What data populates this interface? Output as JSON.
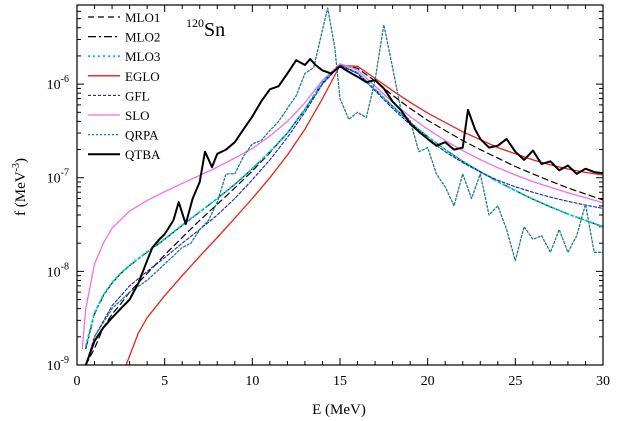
{
  "chart_data": {
    "type": "line",
    "annotation": {
      "sup": "120",
      "main": "Sn"
    },
    "xlabel": "E (MeV)",
    "ylabel_main": "f (MeV",
    "ylabel_sup": "-3",
    "ylabel_end": ")",
    "xlim": [
      0,
      30
    ],
    "ylim": [
      1e-09,
      7e-06
    ],
    "yscale": "log",
    "grid": false,
    "legend_position": "top-left",
    "x_ticks": [
      {
        "value": 0,
        "label": "0"
      },
      {
        "value": 5,
        "label": "5"
      },
      {
        "value": 10,
        "label": "10"
      },
      {
        "value": 15,
        "label": "15"
      },
      {
        "value": 20,
        "label": "20"
      },
      {
        "value": 25,
        "label": "25"
      },
      {
        "value": 30,
        "label": "30"
      }
    ],
    "y_ticks": [
      {
        "value": 1e-09,
        "base": "10",
        "exp": "-9"
      },
      {
        "value": 1e-08,
        "base": "10",
        "exp": "-8"
      },
      {
        "value": 1e-07,
        "base": "10",
        "exp": "-7"
      },
      {
        "value": 1e-06,
        "base": "10",
        "exp": "-6"
      }
    ],
    "series": [
      {
        "name": "MLO1",
        "color": "#000000",
        "dash": "6,4",
        "width": 1.2,
        "x": [
          0.5,
          1,
          1.5,
          2,
          2.5,
          3,
          4,
          5,
          6,
          7,
          8,
          9,
          10,
          11,
          12,
          13,
          14,
          15,
          16,
          17,
          18,
          19,
          20,
          21,
          22,
          23,
          24,
          25,
          26,
          27,
          28,
          29,
          30
        ],
        "y": [
          1e-09,
          1.5e-09,
          2.5e-09,
          3.5e-09,
          4.5e-09,
          6e-09,
          9.5e-09,
          1.5e-08,
          2.3e-08,
          3.5e-08,
          5.2e-08,
          7.8e-08,
          1.18e-07,
          1.85e-07,
          3e-07,
          5.3e-07,
          1.02e-06,
          1.62e-06,
          1.48e-06,
          1.08e-06,
          7.6e-07,
          5.5e-07,
          4.1e-07,
          3.2e-07,
          2.5e-07,
          2e-07,
          1.62e-07,
          1.32e-07,
          1.1e-07,
          9.2e-08,
          7.8e-08,
          6.7e-08,
          5.8e-08
        ]
      },
      {
        "name": "MLO2",
        "color": "#000000",
        "dash": "8,3,2,3",
        "width": 1.2,
        "x": [
          0.5,
          1,
          1.5,
          2,
          2.5,
          3,
          4,
          5,
          6,
          7,
          8,
          9,
          10,
          11,
          12,
          13,
          14,
          15,
          16,
          17,
          18,
          19,
          20,
          21,
          22,
          23,
          24,
          25,
          26,
          27,
          28,
          29,
          30
        ],
        "y": [
          1.5e-09,
          3.5e-09,
          5.5e-09,
          7.5e-09,
          9.5e-09,
          1.15e-08,
          1.6e-08,
          2.2e-08,
          3.1e-08,
          4.3e-08,
          6e-08,
          8.5e-08,
          1.25e-07,
          1.9e-07,
          3e-07,
          5.4e-07,
          1.05e-06,
          1.6e-06,
          1.32e-06,
          8.8e-07,
          5.8e-07,
          3.9e-07,
          2.75e-07,
          2e-07,
          1.5e-07,
          1.16e-07,
          9.1e-08,
          7.3e-08,
          5.9e-08,
          4.9e-08,
          4.1e-08,
          3.5e-08,
          3e-08
        ]
      },
      {
        "name": "MLO3",
        "color": "#00c8c8",
        "dash": "2,3",
        "width": 1.8,
        "x": [
          0.5,
          1,
          1.5,
          2,
          2.5,
          3,
          4,
          5,
          6,
          7,
          8,
          9,
          10,
          11,
          12,
          13,
          14,
          15,
          16,
          17,
          18,
          19,
          20,
          21,
          22,
          23,
          24,
          25,
          26,
          27,
          28,
          29,
          30
        ],
        "y": [
          1.6e-09,
          3.6e-09,
          5.6e-09,
          7.6e-09,
          9.6e-09,
          1.16e-08,
          1.62e-08,
          2.22e-08,
          3.12e-08,
          4.32e-08,
          6e-08,
          8.5e-08,
          1.25e-07,
          1.9e-07,
          3e-07,
          5.4e-07,
          1.05e-06,
          1.6e-06,
          1.32e-06,
          8.8e-07,
          5.8e-07,
          3.9e-07,
          2.75e-07,
          2e-07,
          1.5e-07,
          1.16e-07,
          9.1e-08,
          7.3e-08,
          5.9e-08,
          4.9e-08,
          4.1e-08,
          3.5e-08,
          3e-08
        ]
      },
      {
        "name": "EGLO",
        "color": "#e8221c",
        "dash": "",
        "width": 1.3,
        "x": [
          2.8,
          3.5,
          4,
          5,
          6,
          7,
          8,
          9,
          10,
          11,
          12,
          13,
          14,
          15,
          16,
          17,
          18,
          19,
          20,
          21,
          22,
          23,
          24,
          25,
          26,
          27,
          28,
          29,
          30
        ],
        "y": [
          1e-09,
          2.2e-09,
          3.2e-09,
          5.5e-09,
          9e-09,
          1.45e-08,
          2.3e-08,
          3.7e-08,
          6e-08,
          1e-07,
          1.75e-07,
          3.3e-07,
          7e-07,
          1.58e-06,
          1.55e-06,
          1.15e-06,
          8.5e-07,
          6.4e-07,
          4.9e-07,
          3.9e-07,
          3.1e-07,
          2.55e-07,
          2.1e-07,
          1.8e-07,
          1.55e-07,
          1.37e-07,
          1.24e-07,
          1.14e-07,
          1.07e-07
        ]
      },
      {
        "name": "GFL",
        "color": "#2020c8",
        "dash": "3,2",
        "width": 1.1,
        "x": [
          0.5,
          1,
          2,
          3,
          4,
          5,
          6,
          7,
          8,
          9,
          10,
          11,
          12,
          13,
          14,
          15,
          16,
          17,
          18,
          19,
          20,
          21,
          22,
          23,
          24,
          25,
          26,
          27,
          28,
          29,
          30
        ],
        "y": [
          1e-09,
          2e-09,
          4.3e-09,
          7e-09,
          1e-08,
          1.4e-08,
          2e-08,
          2.8e-08,
          4e-08,
          6e-08,
          9.5e-08,
          1.55e-07,
          2.7e-07,
          5e-07,
          1e-06,
          1.58e-06,
          1.3e-06,
          8.5e-07,
          5.5e-07,
          3.7e-07,
          2.6e-07,
          1.9e-07,
          1.45e-07,
          1.15e-07,
          9.4e-08,
          8e-08,
          7e-08,
          6.2e-08,
          5.6e-08,
          5.1e-08,
          4.7e-08
        ]
      },
      {
        "name": "SLO",
        "color": "#f06ef0",
        "dash": "",
        "width": 1.3,
        "x": [
          0.3,
          0.5,
          1,
          1.5,
          2,
          3,
          4,
          5,
          6,
          7,
          8,
          9,
          10,
          11,
          12,
          13,
          14,
          15,
          16,
          17,
          18,
          19,
          20,
          21,
          22,
          23,
          24,
          25,
          26,
          27,
          28,
          29,
          30
        ],
        "y": [
          1.5e-09,
          4e-09,
          1.2e-08,
          2e-08,
          2.9e-08,
          4.4e-08,
          5.7e-08,
          7.1e-08,
          8.7e-08,
          1.06e-07,
          1.3e-07,
          1.62e-07,
          2.05e-07,
          2.8e-07,
          4e-07,
          6.3e-07,
          1.1e-06,
          1.65e-06,
          1.42e-06,
          9.5e-07,
          6.4e-07,
          4.5e-07,
          3.3e-07,
          2.5e-07,
          1.95e-07,
          1.56e-07,
          1.28e-07,
          1.07e-07,
          9.1e-08,
          7.9e-08,
          6.9e-08,
          6.1e-08,
          5.4e-08
        ]
      },
      {
        "name": "QRPA",
        "color": "#1e7d87",
        "dash": "2,2",
        "width": 1.3,
        "x": [
          1,
          2,
          3,
          4,
          5,
          6,
          6.5,
          7,
          7.5,
          8,
          8.5,
          9,
          9.5,
          10,
          10.5,
          11,
          11.5,
          12,
          12.5,
          13,
          13.5,
          14,
          14.3,
          14.7,
          15,
          15.5,
          16,
          16.5,
          17,
          17.5,
          18,
          18.5,
          19,
          19.5,
          20,
          20.5,
          21,
          21.5,
          22,
          22.5,
          23,
          23.5,
          24,
          24.5,
          25,
          25.5,
          26,
          26.5,
          27,
          27.5,
          28,
          28.5,
          29,
          29.5,
          30
        ],
        "y": [
          2e-09,
          4e-09,
          6e-09,
          8e-09,
          1.2e-08,
          1.8e-08,
          2e-08,
          2.8e-08,
          3.5e-08,
          5.5e-08,
          1.1e-07,
          1.1e-07,
          1.7e-07,
          2.3e-07,
          2.5e-07,
          3.2e-07,
          4e-07,
          5.5e-07,
          7.5e-07,
          1.3e-06,
          1.5e-06,
          3.8e-06,
          6.5e-06,
          2.5e-06,
          7e-07,
          4.2e-07,
          5e-07,
          4.4e-07,
          1.1e-06,
          4.3e-06,
          1.5e-06,
          5e-07,
          4.1e-07,
          1.9e-07,
          2.1e-07,
          1.1e-07,
          8e-08,
          5e-08,
          1.1e-07,
          6e-08,
          1.1e-07,
          4e-08,
          5e-08,
          2.8e-08,
          1.3e-08,
          3e-08,
          2.2e-08,
          2.4e-08,
          1.6e-08,
          2.8e-08,
          1.6e-08,
          2.4e-08,
          5.2e-08,
          1.6e-08,
          1.6e-08
        ]
      },
      {
        "name": "QTBA",
        "color": "#000000",
        "dash": "",
        "width": 2.0,
        "x": [
          0.5,
          1,
          1.5,
          2,
          2.5,
          3,
          3.5,
          4,
          4.3,
          4.7,
          5,
          5.5,
          5.8,
          6.2,
          6.6,
          7,
          7.3,
          7.7,
          8,
          8.5,
          9,
          9.5,
          10,
          10.5,
          11,
          11.5,
          12,
          12.5,
          13,
          13.3,
          13.6,
          14,
          14.5,
          15,
          15.5,
          16,
          16.5,
          17,
          17.5,
          18,
          18.5,
          19,
          19.5,
          20,
          20.5,
          21,
          21.5,
          22,
          22.3,
          22.7,
          23,
          23.5,
          24,
          24.5,
          25,
          25.5,
          26,
          26.5,
          27,
          27.5,
          28,
          28.5,
          29,
          29.5,
          30
        ],
        "y": [
          1e-09,
          1.8e-09,
          2.5e-09,
          3.2e-09,
          4e-09,
          5e-09,
          7.5e-09,
          1.3e-08,
          1.8e-08,
          2.2e-08,
          2.5e-08,
          3.5e-08,
          5.5e-08,
          3.2e-08,
          6e-08,
          9e-08,
          1.9e-07,
          1.3e-07,
          1.8e-07,
          2e-07,
          2.4e-07,
          3.3e-07,
          4.5e-07,
          6.5e-07,
          8.8e-07,
          9.5e-07,
          1.3e-06,
          1.8e-06,
          1.6e-06,
          1.85e-06,
          1.6e-06,
          1.4e-06,
          1.3e-06,
          1.55e-06,
          1.35e-06,
          1.2e-06,
          1.05e-06,
          1.1e-06,
          9e-07,
          6.5e-07,
          5.2e-07,
          3.8e-07,
          3.1e-07,
          2.6e-07,
          2.2e-07,
          2.4e-07,
          2e-07,
          2.1e-07,
          5.3e-07,
          3.3e-07,
          2.6e-07,
          2.1e-07,
          2.2e-07,
          2.6e-07,
          1.9e-07,
          1.55e-07,
          1.95e-07,
          1.4e-07,
          1.5e-07,
          1.2e-07,
          1.35e-07,
          1.1e-07,
          1.25e-07,
          1.15e-07,
          1.12e-07
        ]
      }
    ]
  }
}
